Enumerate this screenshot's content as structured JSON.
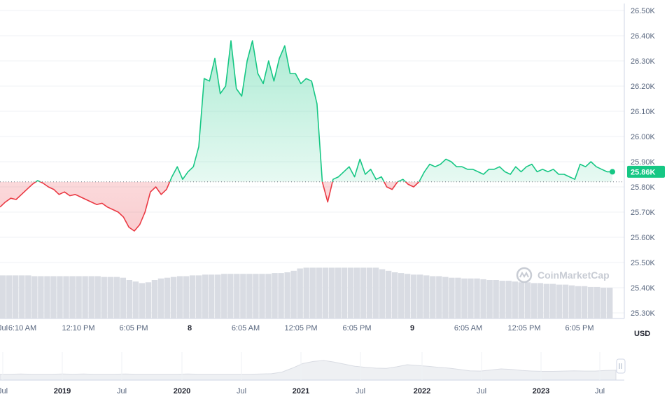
{
  "chart_data": {
    "type": "line",
    "currency": "USD",
    "watermark": "CoinMarketCap",
    "current_price_label": "25.86K",
    "colors": {
      "up": "#16c784",
      "down": "#ea3943",
      "volume": "#d9dce3",
      "grid": "#eff2f5"
    },
    "ylim": [
      25300,
      26500
    ],
    "yticks": [
      "26.50K",
      "26.40K",
      "26.30K",
      "26.20K",
      "26.10K",
      "26.00K",
      "25.90K",
      "25.80K",
      "25.70K",
      "25.60K",
      "25.50K",
      "25.40K",
      "25.30K"
    ],
    "ytick_values": [
      26500,
      26400,
      26300,
      26200,
      26100,
      26000,
      25900,
      25800,
      25700,
      25600,
      25500,
      25400,
      25300
    ],
    "reference_price": 25820,
    "xticks": [
      {
        "label": "Jul",
        "bold": false
      },
      {
        "label": "6:10 AM",
        "bold": false
      },
      {
        "label": "12:10 PM",
        "bold": false
      },
      {
        "label": "6:05 PM",
        "bold": false
      },
      {
        "label": "8",
        "bold": true
      },
      {
        "label": "6:05 AM",
        "bold": false
      },
      {
        "label": "12:05 PM",
        "bold": false
      },
      {
        "label": "6:05 PM",
        "bold": false
      },
      {
        "label": "9",
        "bold": true
      },
      {
        "label": "6:05 AM",
        "bold": false
      },
      {
        "label": "12:05 PM",
        "bold": false
      },
      {
        "label": "6:05 PM",
        "bold": false
      }
    ],
    "navigator_ticks": [
      {
        "label": "Jul",
        "bold": false
      },
      {
        "label": "2019",
        "bold": true
      },
      {
        "label": "Jul",
        "bold": false
      },
      {
        "label": "2020",
        "bold": true
      },
      {
        "label": "Jul",
        "bold": false
      },
      {
        "label": "2021",
        "bold": true
      },
      {
        "label": "Jul",
        "bold": false
      },
      {
        "label": "2022",
        "bold": true
      },
      {
        "label": "Jul",
        "bold": false
      },
      {
        "label": "2023",
        "bold": true
      },
      {
        "label": "Jul",
        "bold": false
      }
    ],
    "price_series": [
      25720,
      25740,
      25755,
      25750,
      25770,
      25790,
      25810,
      25825,
      25815,
      25800,
      25790,
      25770,
      25780,
      25765,
      25770,
      25760,
      25750,
      25740,
      25730,
      25735,
      25720,
      25710,
      25700,
      25680,
      25640,
      25625,
      25650,
      25700,
      25780,
      25800,
      25770,
      25790,
      25840,
      25880,
      25830,
      25860,
      25880,
      25960,
      26230,
      26220,
      26310,
      26170,
      26200,
      26380,
      26190,
      26160,
      26300,
      26380,
      26250,
      26210,
      26300,
      26220,
      26310,
      26360,
      26250,
      26250,
      26210,
      26230,
      26220,
      26130,
      25820,
      25740,
      25830,
      25840,
      25860,
      25880,
      25840,
      25910,
      25850,
      25870,
      25830,
      25840,
      25800,
      25790,
      25820,
      25830,
      25810,
      25800,
      25820,
      25860,
      25890,
      25880,
      25890,
      25910,
      25900,
      25880,
      25880,
      25870,
      25870,
      25860,
      25850,
      25870,
      25870,
      25880,
      25860,
      25850,
      25880,
      25860,
      25880,
      25890,
      25860,
      25870,
      25860,
      25870,
      25850,
      25850,
      25840,
      25830,
      25890,
      25880,
      25900,
      25880,
      25870,
      25860,
      25860
    ],
    "volume_series": [
      0.56,
      0.56,
      0.56,
      0.56,
      0.56,
      0.55,
      0.55,
      0.55,
      0.55,
      0.55,
      0.55,
      0.55,
      0.55,
      0.55,
      0.55,
      0.55,
      0.54,
      0.54,
      0.54,
      0.53,
      0.5,
      0.48,
      0.46,
      0.47,
      0.5,
      0.52,
      0.53,
      0.54,
      0.55,
      0.55,
      0.56,
      0.56,
      0.57,
      0.57,
      0.57,
      0.58,
      0.58,
      0.58,
      0.58,
      0.58,
      0.58,
      0.58,
      0.58,
      0.59,
      0.59,
      0.6,
      0.62,
      0.65,
      0.66,
      0.66,
      0.66,
      0.66,
      0.66,
      0.66,
      0.66,
      0.66,
      0.66,
      0.66,
      0.66,
      0.66,
      0.64,
      0.62,
      0.6,
      0.59,
      0.58,
      0.57,
      0.57,
      0.56,
      0.55,
      0.55,
      0.54,
      0.53,
      0.53,
      0.52,
      0.52,
      0.52,
      0.51,
      0.5,
      0.5,
      0.49,
      0.49,
      0.48,
      0.47,
      0.47,
      0.46,
      0.46,
      0.45,
      0.45,
      0.44,
      0.44,
      0.43,
      0.42,
      0.42,
      0.41,
      0.41,
      0.4,
      0.4
    ]
  }
}
